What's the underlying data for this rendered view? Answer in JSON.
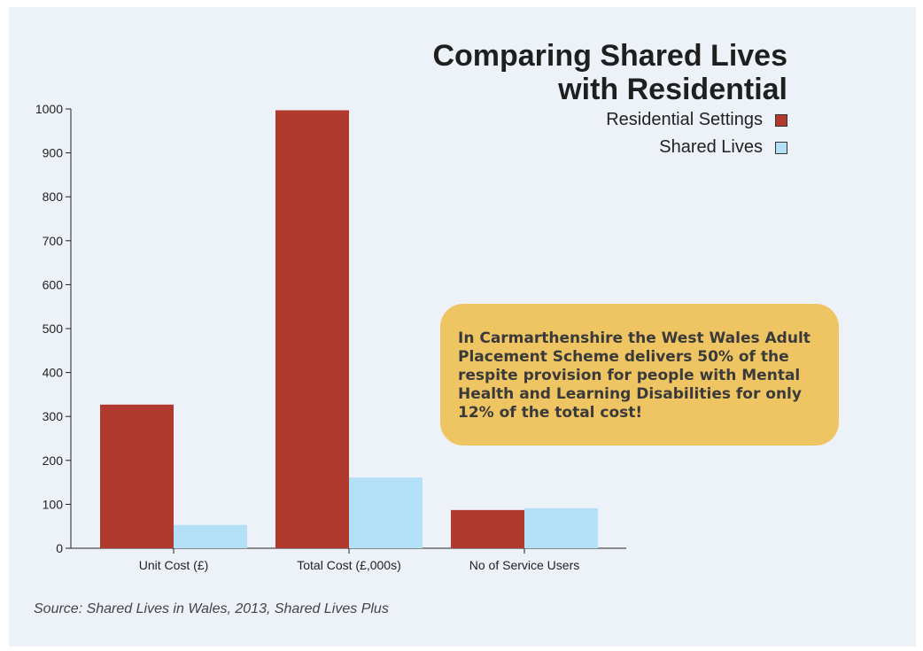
{
  "chart_data": {
    "type": "bar",
    "title_lines": [
      "Comparing Shared Lives",
      "with Residential"
    ],
    "categories": [
      "Unit Cost (£)",
      "Total Cost (£,000s)",
      "No of Service Users"
    ],
    "series": [
      {
        "name": "Residential Settings",
        "color": "#b03a2e",
        "values": [
          327,
          997,
          87
        ]
      },
      {
        "name": "Shared Lives",
        "color": "#b3dff7",
        "values": [
          53,
          161,
          91
        ]
      }
    ],
    "ylim": [
      0,
      1000
    ],
    "yticks": [
      0,
      100,
      200,
      300,
      400,
      500,
      600,
      700,
      800,
      900,
      1000
    ],
    "grid": false,
    "legend_position": "top-right"
  },
  "callout_text": "In Carmarthenshire the West Wales Adult Placement Scheme delivers 50% of the respite provision for people with Mental Health and Learning Disabilities for only 12% of the total cost!",
  "source_text": "Source: Shared Lives in Wales, 2013, Shared Lives Plus"
}
